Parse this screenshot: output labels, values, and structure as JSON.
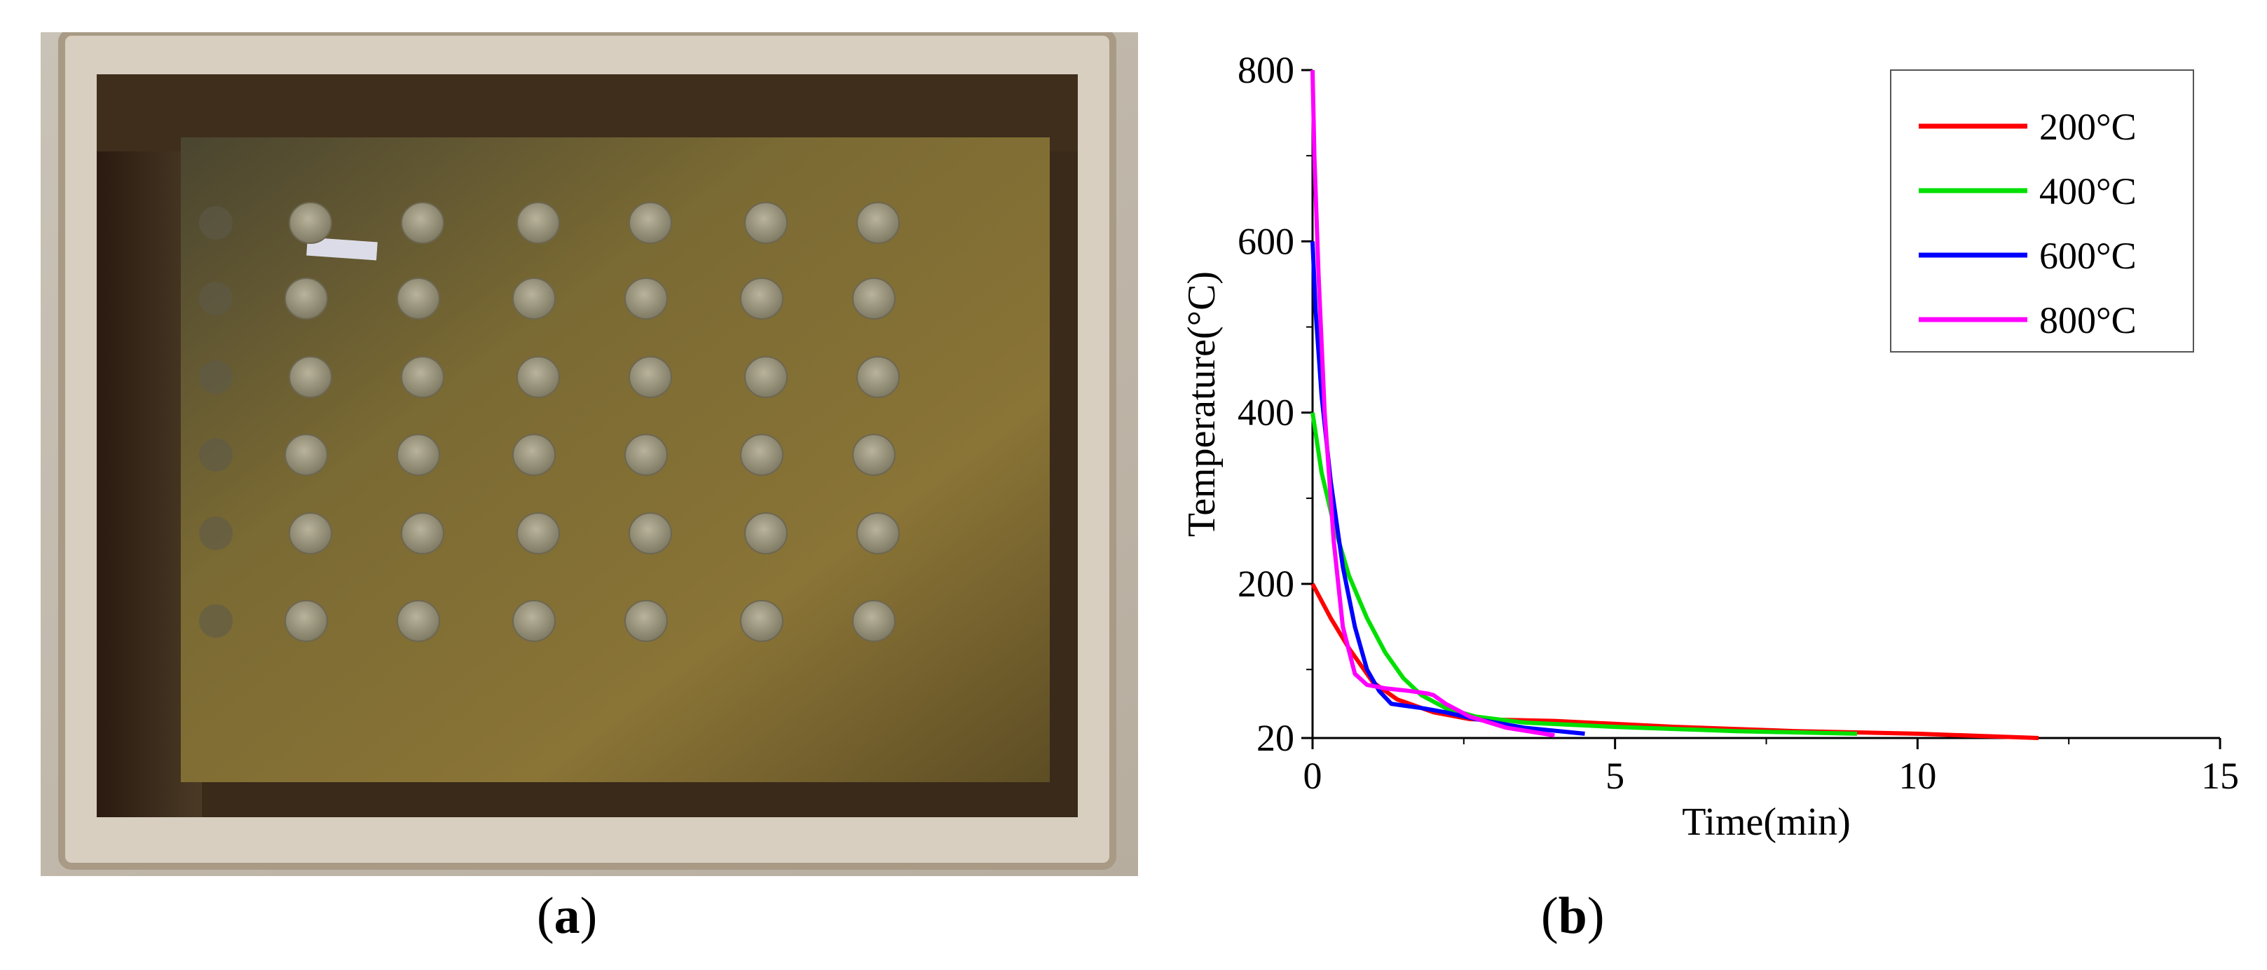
{
  "panels": {
    "a": {
      "label": "a"
    },
    "b": {
      "label": "b"
    }
  },
  "colors": {
    "series_200": "#ff0000",
    "series_400": "#00e000",
    "series_600": "#0000ff",
    "series_800": "#ff00ff"
  },
  "photo": {
    "description_icon": "water-tank-with-cylindrical-specimens"
  },
  "chart_data": {
    "type": "line",
    "title": "",
    "xlabel": "Time(min)",
    "ylabel": "Temperature(°C)",
    "xlim": [
      0,
      15
    ],
    "ylim": [
      20,
      800
    ],
    "x_ticks": [
      "0",
      "5",
      "10",
      "15"
    ],
    "y_ticks": [
      "20",
      "200",
      "400",
      "600",
      "800"
    ],
    "legend_position": "top-right",
    "grid": false,
    "series": [
      {
        "name": "200°C",
        "color": "#ff0000",
        "points": [
          [
            0,
            200
          ],
          [
            0.3,
            160
          ],
          [
            0.6,
            125
          ],
          [
            1.0,
            85
          ],
          [
            1.4,
            65
          ],
          [
            2.0,
            50
          ],
          [
            2.6,
            42
          ],
          [
            4,
            40
          ],
          [
            6,
            33
          ],
          [
            8,
            28
          ],
          [
            10,
            25
          ],
          [
            12,
            20
          ]
        ]
      },
      {
        "name": "400°C",
        "color": "#00e000",
        "points": [
          [
            0,
            400
          ],
          [
            0.15,
            330
          ],
          [
            0.35,
            270
          ],
          [
            0.6,
            210
          ],
          [
            0.9,
            160
          ],
          [
            1.2,
            120
          ],
          [
            1.5,
            90
          ],
          [
            1.8,
            70
          ],
          [
            2.2,
            55
          ],
          [
            2.7,
            45
          ],
          [
            3.5,
            38
          ],
          [
            5,
            33
          ],
          [
            7,
            28
          ],
          [
            9,
            25
          ]
        ]
      },
      {
        "name": "600°C",
        "color": "#0000ff",
        "points": [
          [
            0,
            600
          ],
          [
            0.05,
            520
          ],
          [
            0.15,
            420
          ],
          [
            0.3,
            320
          ],
          [
            0.5,
            220
          ],
          [
            0.7,
            150
          ],
          [
            0.9,
            100
          ],
          [
            1.1,
            75
          ],
          [
            1.3,
            60
          ],
          [
            1.5,
            58
          ],
          [
            1.8,
            55
          ],
          [
            2.2,
            50
          ],
          [
            2.7,
            42
          ],
          [
            3.5,
            32
          ],
          [
            4.5,
            25
          ]
        ]
      },
      {
        "name": "800°C",
        "color": "#ff00ff",
        "points": [
          [
            0,
            800
          ],
          [
            0.03,
            700
          ],
          [
            0.1,
            560
          ],
          [
            0.2,
            400
          ],
          [
            0.35,
            250
          ],
          [
            0.5,
            150
          ],
          [
            0.7,
            95
          ],
          [
            0.9,
            82
          ],
          [
            1.2,
            78
          ],
          [
            1.6,
            75
          ],
          [
            1.9,
            72
          ],
          [
            2.0,
            70
          ],
          [
            2.2,
            60
          ],
          [
            2.6,
            45
          ],
          [
            3.2,
            32
          ],
          [
            4.0,
            23
          ]
        ]
      }
    ]
  }
}
